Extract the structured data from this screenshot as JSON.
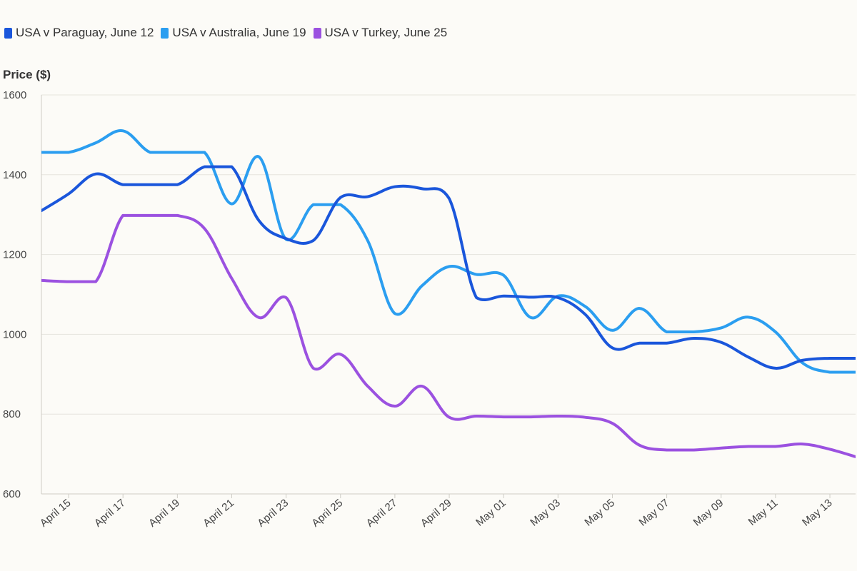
{
  "chart_data": {
    "type": "line",
    "ylabel": "Price ($)",
    "ylim": [
      600,
      1600
    ],
    "yticks": [
      600,
      800,
      1000,
      1200,
      1400,
      1600
    ],
    "grid": true,
    "legend_position": "top-left",
    "x": [
      "Apr 14",
      "Apr 15",
      "Apr 16",
      "Apr 17",
      "Apr 18",
      "Apr 19",
      "Apr 20",
      "Apr 21",
      "Apr 22",
      "Apr 23",
      "Apr 24",
      "Apr 25",
      "Apr 26",
      "Apr 27",
      "Apr 28",
      "Apr 29",
      "Apr 30",
      "May 01",
      "May 02",
      "May 03",
      "May 04",
      "May 05",
      "May 06",
      "May 07",
      "May 08",
      "May 09",
      "May 10",
      "May 11",
      "May 12",
      "May 13",
      "May 14"
    ],
    "xtick_labels": [
      "April 15",
      "April 17",
      "April 19",
      "April 21",
      "April 23",
      "April 25",
      "April 27",
      "April 29",
      "May 01",
      "May 03",
      "May 05",
      "May 07",
      "May 09",
      "May 11",
      "May 13"
    ],
    "xtick_indices": [
      1,
      3,
      5,
      7,
      9,
      11,
      13,
      15,
      17,
      19,
      21,
      23,
      25,
      27,
      29
    ],
    "series": [
      {
        "name": "USA v Paraguay, June 12",
        "color": "#1a56db",
        "values": [
          1310,
          1352,
          1402,
          1375,
          1375,
          1375,
          1420,
          1420,
          1285,
          1240,
          1235,
          1343,
          1345,
          1370,
          1365,
          1340,
          1092,
          1096,
          1093,
          1092,
          1050,
          966,
          978,
          978,
          990,
          980,
          943,
          915,
          935,
          940,
          940
        ]
      },
      {
        "name": "USA v Australia, June 19",
        "color": "#2b9ef0",
        "values": [
          1456,
          1456,
          1480,
          1510,
          1456,
          1456,
          1456,
          1327,
          1445,
          1238,
          1325,
          1325,
          1235,
          1052,
          1122,
          1170,
          1150,
          1148,
          1042,
          1096,
          1070,
          1010,
          1065,
          1006,
          1006,
          1016,
          1043,
          1006,
          928,
          905,
          905
        ]
      },
      {
        "name": "USA v Turkey, June 25",
        "color": "#9b51e0",
        "values": [
          1135,
          1132,
          1132,
          1298,
          1298,
          1298,
          1265,
          1140,
          1042,
          1092,
          915,
          950,
          870,
          820,
          870,
          792,
          795,
          793,
          793,
          795,
          792,
          777,
          722,
          710,
          710,
          715,
          719,
          719,
          725,
          712,
          692
        ]
      }
    ]
  }
}
